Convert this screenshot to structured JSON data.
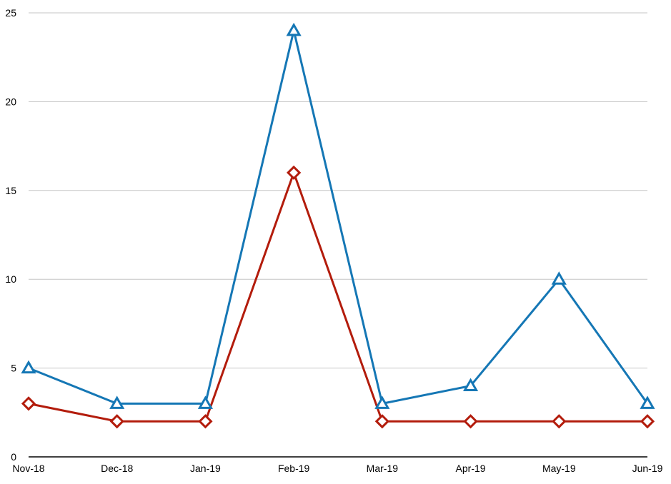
{
  "chart_data": {
    "type": "line",
    "title": "",
    "xlabel": "",
    "ylabel": "",
    "categories": [
      "Nov-18",
      "Dec-18",
      "Jan-19",
      "Feb-19",
      "Mar-19",
      "Apr-19",
      "May-19",
      "Jun-19"
    ],
    "y_ticks": [
      "0",
      "5",
      "10",
      "15",
      "20",
      "25"
    ],
    "ylim": [
      0,
      25
    ],
    "grid": true,
    "legend": "none",
    "series": [
      {
        "values": [
          5,
          3,
          3,
          24,
          3,
          4,
          10,
          3
        ],
        "color": "#1577b5",
        "marker": "triangle"
      },
      {
        "values": [
          3,
          2,
          2,
          16,
          2,
          2,
          2,
          2
        ],
        "color": "#b31c0c",
        "marker": "diamond"
      }
    ]
  }
}
